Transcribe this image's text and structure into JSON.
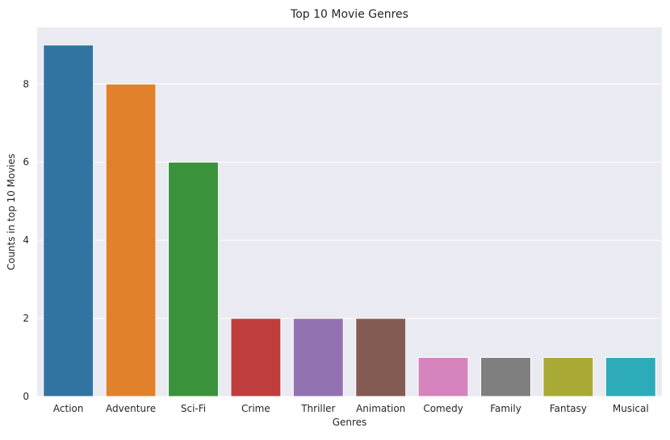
{
  "chart_data": {
    "type": "bar",
    "title": "Top 10 Movie Genres",
    "xlabel": "Genres",
    "ylabel": "Counts in top 10 Movies",
    "categories": [
      "Action",
      "Adventure",
      "Sci-Fi",
      "Crime",
      "Thriller",
      "Animation",
      "Comedy",
      "Family",
      "Fantasy",
      "Musical"
    ],
    "values": [
      9,
      8,
      6,
      2,
      2,
      2,
      1,
      1,
      1,
      1
    ],
    "colors": [
      "#3274a1",
      "#e1812c",
      "#3a923a",
      "#c03d3e",
      "#9372b2",
      "#845b53",
      "#d684bd",
      "#7f7f7f",
      "#a9aa35",
      "#2eabb8"
    ],
    "ylim": [
      0,
      9.45
    ],
    "yticks": [
      0,
      2,
      4,
      6,
      8
    ],
    "grid": true,
    "background": "#eaeaf2"
  }
}
